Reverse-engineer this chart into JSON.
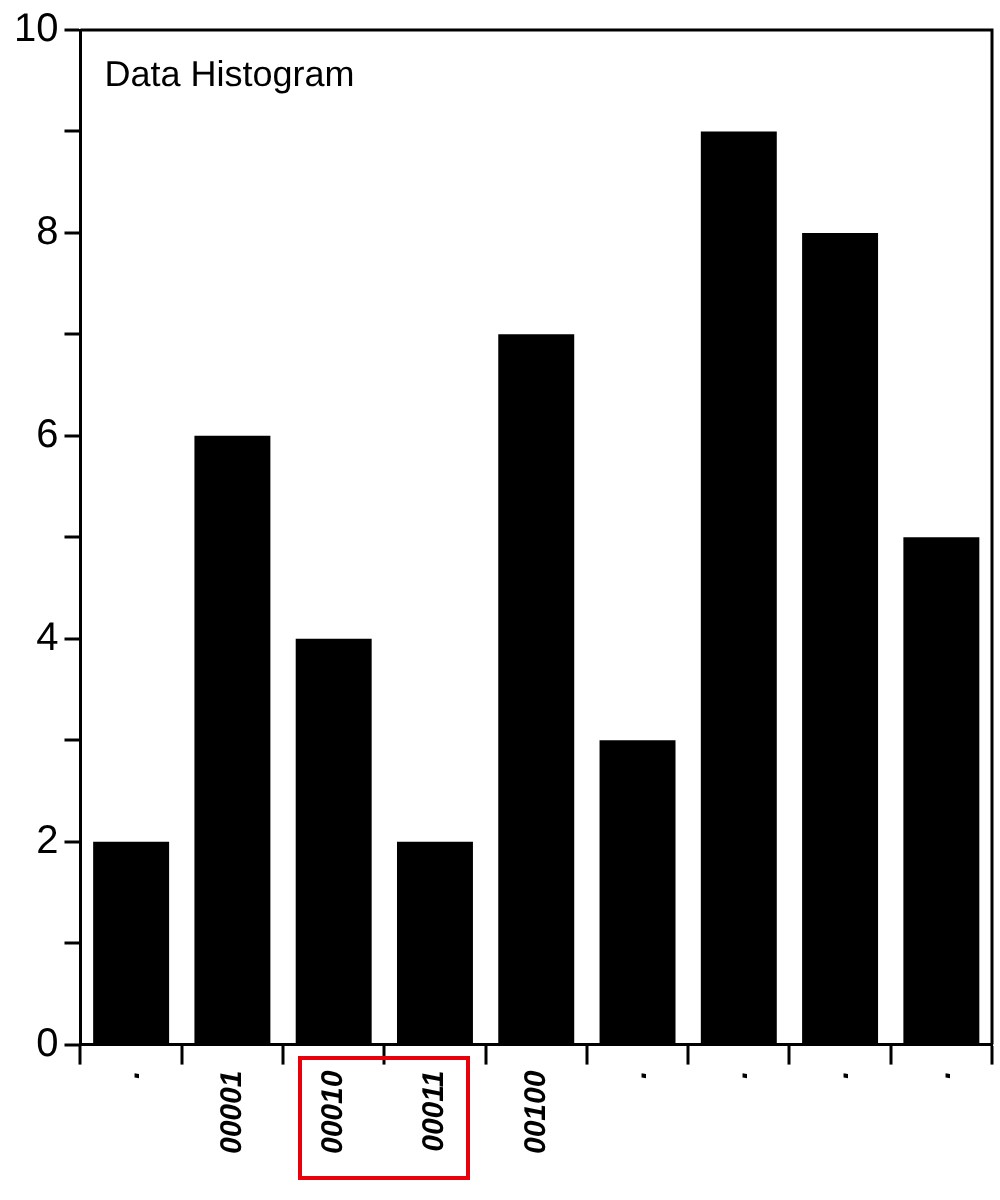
{
  "chart_data": {
    "type": "bar",
    "title": "Data Histogram",
    "categories": [
      ".",
      "00001",
      "00010",
      "00011",
      "00100",
      ".",
      ".",
      ".",
      "."
    ],
    "values": [
      2,
      6,
      4,
      2,
      7,
      3,
      9,
      8,
      5
    ],
    "color": "#000000",
    "ylim": [
      0,
      10
    ],
    "yticks": [
      0,
      {
        "value": 1,
        "label": null
      },
      2,
      {
        "value": 3,
        "label": null
      },
      4,
      {
        "value": 5,
        "label": null
      },
      6,
      {
        "value": 7,
        "label": null
      },
      8,
      {
        "value": 9,
        "label": null
      },
      10
    ],
    "grid": false,
    "legend": false
  }
}
